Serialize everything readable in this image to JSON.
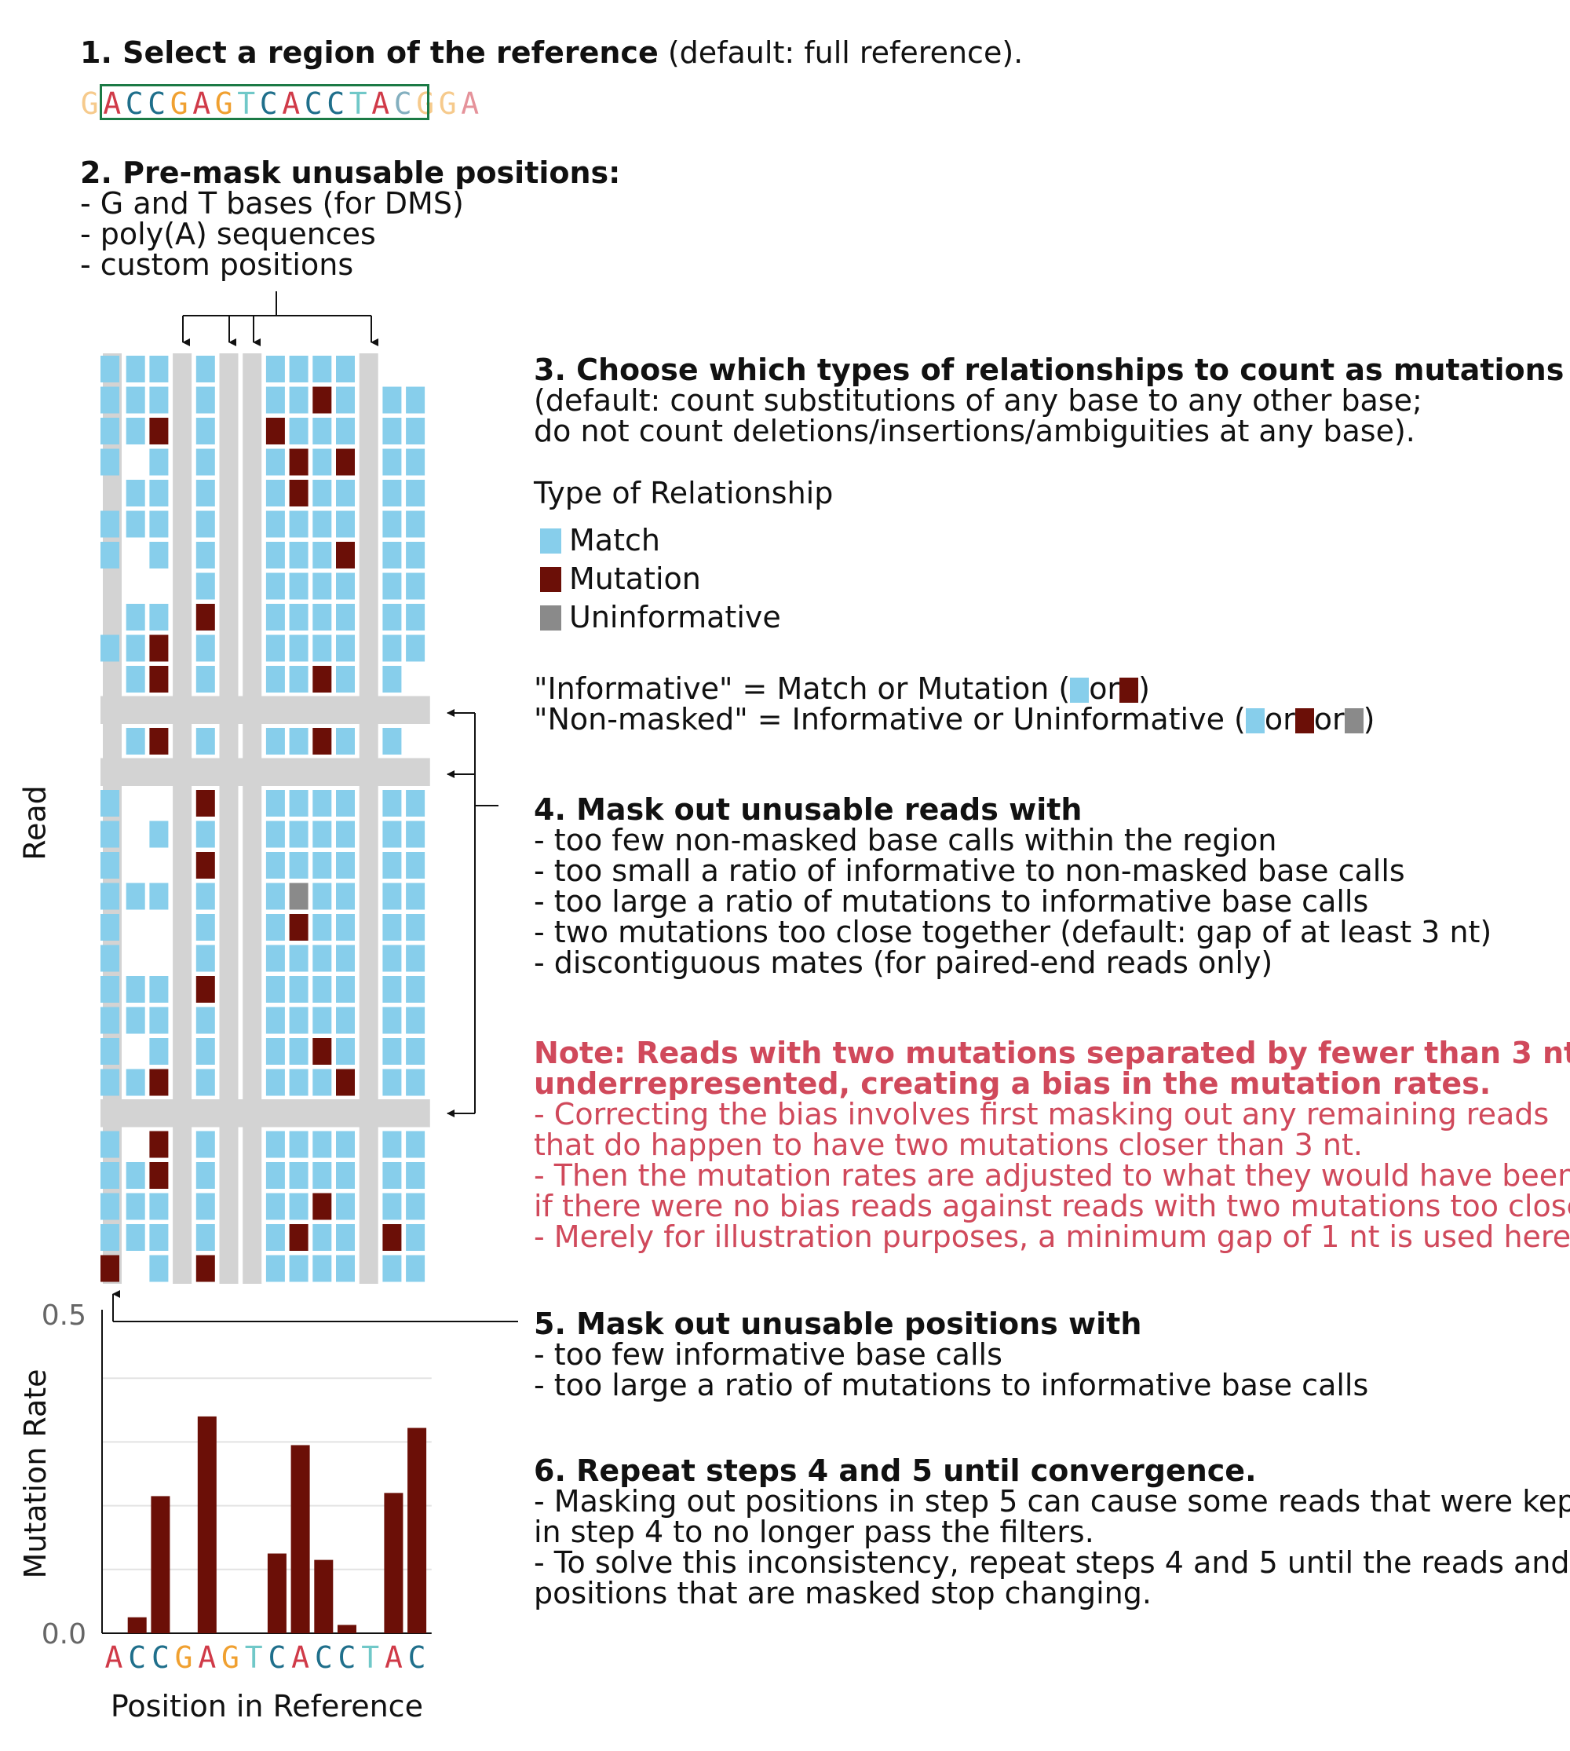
{
  "colors": {
    "match": "#87ceeb",
    "mutation": "#6b0f07",
    "uninformative": "#8a8a8a",
    "mask": "#d3d3d3",
    "note": "#d0495b",
    "region_box": "#1b7a45",
    "base_A": "#d03a48",
    "base_C": "#1f6f8b",
    "base_G": "#f0a030",
    "base_T": "#70c8c8"
  },
  "step1": {
    "bold": "1. Select a region of the reference",
    "rest": " (default: full reference).",
    "sequence": [
      "G",
      "A",
      "C",
      "C",
      "G",
      "A",
      "G",
      "T",
      "C",
      "A",
      "C",
      "C",
      "T",
      "A",
      "C",
      "G",
      "G",
      "A"
    ]
  },
  "step2": {
    "title": "2. Pre-mask unusable positions:",
    "lines": [
      "- G and T bases (for DMS)",
      "- poly(A) sequences",
      "- custom positions"
    ]
  },
  "step3": {
    "title": "3. Choose which types of relationships to count as mutations",
    "lines": [
      "(default: count substitutions of any base to any other base;",
      "do not count deletions/insertions/ambiguities at any base)."
    ],
    "legend_title": "Type of Relationship",
    "legend": [
      "Match",
      "Mutation",
      "Uninformative"
    ],
    "informative_def": [
      "\"Informative\" = Match or Mutation (",
      "or",
      ")"
    ],
    "nonmasked_def": [
      "\"Non-masked\" = Informative or Uninformative (",
      "or",
      "or",
      ")"
    ]
  },
  "step4": {
    "title": "4. Mask out unusable reads with",
    "lines": [
      "- too few non-masked base calls within the region",
      "- too small a ratio of informative to non-masked base calls",
      "- too large a ratio of mutations to informative base calls",
      "- two mutations too close together (default: gap of at least 3 nt)",
      "- discontiguous mates (for paired-end reads only)"
    ]
  },
  "note": {
    "bold_lines": [
      "Note: Reads with two mutations separated by fewer than 3 nt are",
      "underrepresented, creating a bias in the mutation rates."
    ],
    "lines": [
      "- Correcting the bias involves first masking out any remaining reads",
      "that do happen to have two mutations closer than 3 nt.",
      "- Then the mutation rates are adjusted to what they would have been",
      "if there were no bias reads against reads with two mutations too close.",
      "- Merely for illustration purposes, a minimum gap of 1 nt is used here."
    ]
  },
  "step5": {
    "title": "5. Mask out unusable positions with",
    "lines": [
      "- too few informative base calls",
      "- too large a ratio of mutations to informative base calls"
    ]
  },
  "step6": {
    "title": "6. Repeat steps 4 and 5 until convergence.",
    "lines": [
      "- Masking out positions in step 5 can cause some reads that were kept",
      "in step 4 to no longer pass the filters.",
      "- To solve this inconsistency, repeat steps 4 and 5 until the reads and",
      "positions that are masked stop changing."
    ]
  },
  "read_axis_label": "Read",
  "matrix": {
    "masked_columns": [
      0,
      3,
      5,
      6,
      11
    ],
    "masked_rows": [
      11,
      13,
      24
    ],
    "rows": [
      "MMMMMMM..M.MM",
      "MMMMMUMMM.UMM",
      "MUMUMMMMM.MMM",
      ".MMMUMUMM.M..",
      "MMMMUMMMM....",
      "MMMMMMMMM.MMM",
      ".MMMMMUMM..MM",
      "..MMMMMMM....",
      "MMUMMMMMM....",
      "MUMMMMMMM.MMM",
      "MUMMMUMM.....",
      "",
      "MUMMMUMM.....",
      "",
      "..UMMMMMM.M..",
      ".MMMMMMMM.XUM",
      "..UMMMMMM.MMM",
      "MMMMXMMMM.MMM",
      "..MMUMMMM.MMM",
      "..MMMMMMM.MMM",
      "MMUMMMMMM.MMM",
      "MMMMMMMMM.MMM",
      ".MMMMUMMM.MMM",
      "MUMMMMUMM.MMM",
      "",
      ".UMMMMMMM.MUM",
      "MUMMMMMMM.MMM",
      "MMMMMUMMM.MMM",
      "MMMMUMMUM.MMM",
      ".MUMMMMMM.MMU"
    ]
  },
  "chart_data": {
    "type": "bar",
    "categories": [
      "A",
      "C",
      "C",
      "G",
      "A",
      "G",
      "T",
      "C",
      "A",
      "C",
      "C",
      "T",
      "A",
      "C"
    ],
    "values": [
      null,
      0.025,
      0.215,
      null,
      0.34,
      null,
      null,
      0.125,
      0.295,
      0.115,
      0.013,
      null,
      0.22,
      0.322
    ],
    "ylabel": "Mutation Rate",
    "xlabel": "Position in Reference",
    "ylim": [
      0,
      0.5
    ],
    "ytick_labels": [
      "0.0",
      "0.5"
    ],
    "grid": true
  }
}
